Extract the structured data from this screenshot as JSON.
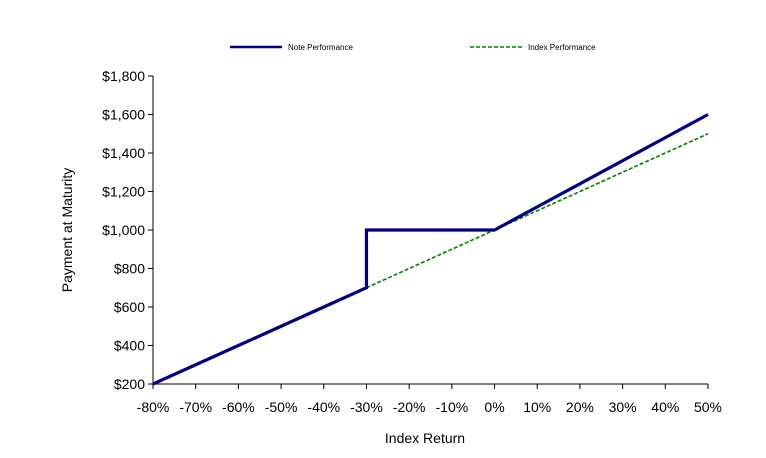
{
  "chart_data": {
    "type": "line",
    "title": "",
    "xlabel": "Index Return",
    "ylabel": "Payment at Maturity",
    "xlim": [
      -80,
      50
    ],
    "ylim": [
      200,
      1800
    ],
    "x_ticks": [
      -80,
      -70,
      -60,
      -50,
      -40,
      -30,
      -20,
      -10,
      0,
      10,
      20,
      30,
      40,
      50
    ],
    "x_tick_labels": [
      "-80%",
      "-70%",
      "-60%",
      "-50%",
      "-40%",
      "-30%",
      "-20%",
      "-10%",
      "0%",
      "10%",
      "20%",
      "30%",
      "40%",
      "50%"
    ],
    "y_ticks": [
      200,
      400,
      600,
      800,
      1000,
      1200,
      1400,
      1600,
      1800
    ],
    "y_tick_labels": [
      "$200",
      "$400",
      "$600",
      "$800",
      "$1,000",
      "$1,200",
      "$1,400",
      "$1,600",
      "$1,800"
    ],
    "grid": false,
    "legend_position": "top",
    "series": [
      {
        "name": "Note Performance",
        "color": "#000080",
        "style": "solid",
        "x": [
          -80,
          -70,
          -60,
          -50,
          -40,
          -30,
          -30,
          -20,
          -10,
          0,
          10,
          20,
          30,
          40,
          50
        ],
        "y": [
          200,
          300,
          400,
          500,
          600,
          700,
          1000,
          1000,
          1000,
          1000,
          1120,
          1240,
          1360,
          1480,
          1600
        ]
      },
      {
        "name": "Index Performance",
        "color": "#008000",
        "style": "dashed",
        "x": [
          -80,
          -70,
          -60,
          -50,
          -40,
          -30,
          -20,
          -10,
          0,
          10,
          20,
          30,
          40,
          50
        ],
        "y": [
          200,
          300,
          400,
          500,
          600,
          700,
          800,
          900,
          1000,
          1100,
          1200,
          1300,
          1400,
          1500
        ]
      }
    ]
  }
}
